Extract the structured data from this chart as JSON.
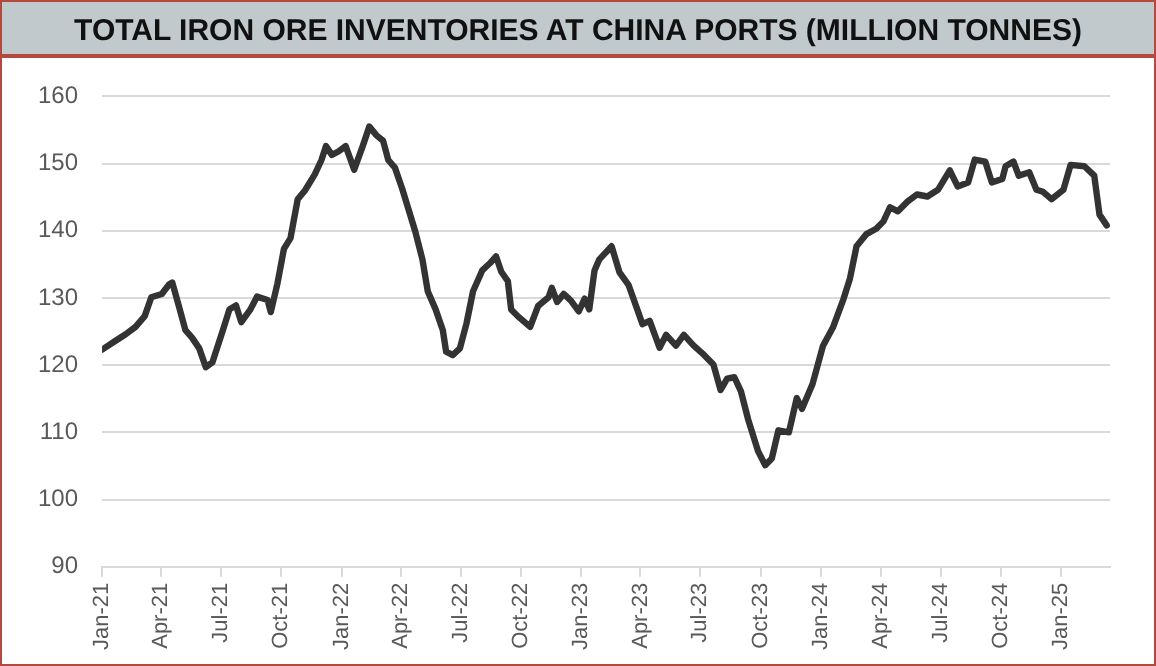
{
  "chart_data": {
    "type": "line",
    "title": "TOTAL IRON ORE INVENTORIES AT CHINA PORTS (MILLION TONNES)",
    "x": [
      "2021-01-01",
      "2021-01-21",
      "2021-02-06",
      "2021-02-21",
      "2021-03-07",
      "2021-03-17",
      "2021-04-02",
      "2021-04-13",
      "2021-04-18",
      "2021-04-28",
      "2021-05-08",
      "2021-05-18",
      "2021-05-29",
      "2021-06-08",
      "2021-06-18",
      "2021-07-04",
      "2021-07-14",
      "2021-07-24",
      "2021-08-01",
      "2021-08-15",
      "2021-08-25",
      "2021-09-10",
      "2021-09-15",
      "2021-09-25",
      "2021-10-05",
      "2021-10-15",
      "2021-10-26",
      "2021-11-06",
      "2021-11-21",
      "2021-12-01",
      "2021-12-08",
      "2021-12-17",
      "2021-12-27",
      "2022-01-07",
      "2022-01-20",
      "2022-02-02",
      "2022-02-12",
      "2022-02-23",
      "2022-03-05",
      "2022-03-13",
      "2022-03-23",
      "2022-04-03",
      "2022-04-13",
      "2022-04-23",
      "2022-05-04",
      "2022-05-12",
      "2022-05-24",
      "2022-06-04",
      "2022-06-09",
      "2022-06-19",
      "2022-06-30",
      "2022-07-10",
      "2022-07-20",
      "2022-08-03",
      "2022-08-15",
      "2022-08-24",
      "2022-09-01",
      "2022-09-11",
      "2022-09-16",
      "2022-09-26",
      "2022-10-15",
      "2022-10-27",
      "2022-11-12",
      "2022-11-17",
      "2022-11-25",
      "2022-12-05",
      "2022-12-16",
      "2022-12-28",
      "2023-01-06",
      "2023-01-13",
      "2023-01-21",
      "2023-01-28",
      "2023-02-16",
      "2023-02-28",
      "2023-03-14",
      "2023-04-04",
      "2023-04-15",
      "2023-04-30",
      "2023-05-10",
      "2023-05-25",
      "2023-06-06",
      "2023-06-21",
      "2023-07-06",
      "2023-07-21",
      "2023-08-01",
      "2023-08-11",
      "2023-08-22",
      "2023-09-01",
      "2023-09-12",
      "2023-09-27",
      "2023-10-08",
      "2023-10-18",
      "2023-10-28",
      "2023-11-13",
      "2023-11-25",
      "2023-12-03",
      "2023-12-19",
      "2024-01-04",
      "2024-01-19",
      "2024-02-04",
      "2024-02-14",
      "2024-02-24",
      "2024-03-10",
      "2024-03-25",
      "2024-04-05",
      "2024-04-15",
      "2024-04-27",
      "2024-05-11",
      "2024-05-26",
      "2024-06-11",
      "2024-06-27",
      "2024-07-15",
      "2024-07-27",
      "2024-08-12",
      "2024-08-22",
      "2024-09-07",
      "2024-09-17",
      "2024-10-03",
      "2024-10-08",
      "2024-10-20",
      "2024-10-28",
      "2024-11-13",
      "2024-11-24",
      "2024-12-04",
      "2024-12-17",
      "2025-01-04",
      "2025-01-15",
      "2025-02-05",
      "2025-02-20",
      "2025-02-28",
      "2025-03-11"
    ],
    "series": [
      {
        "color": "#333333",
        "values": [
          122.3,
          123.6,
          124.6,
          125.7,
          127.3,
          130.1,
          130.6,
          132.0,
          132.3,
          128.8,
          125.2,
          124.1,
          122.5,
          119.7,
          120.4,
          125.2,
          128.3,
          128.9,
          126.4,
          128.3,
          130.2,
          129.7,
          127.9,
          132.1,
          137.3,
          138.9,
          144.7,
          146.0,
          148.4,
          150.5,
          152.6,
          151.3,
          151.8,
          152.6,
          149.1,
          152.6,
          155.5,
          154.2,
          153.4,
          150.5,
          149.4,
          146.3,
          143.1,
          139.9,
          135.7,
          131.0,
          128.3,
          125.2,
          122.0,
          121.5,
          122.5,
          126.2,
          131.0,
          134.1,
          135.2,
          136.2,
          133.9,
          132.5,
          128.3,
          127.3,
          125.7,
          128.8,
          130.1,
          131.5,
          129.4,
          130.6,
          129.6,
          128.0,
          129.9,
          128.3,
          134.1,
          135.7,
          137.7,
          133.8,
          131.9,
          126.1,
          126.6,
          122.6,
          124.5,
          122.9,
          124.5,
          122.9,
          121.6,
          120.1,
          116.3,
          118.0,
          118.2,
          116.1,
          111.9,
          107.2,
          105.1,
          106.1,
          110.3,
          110.0,
          115.1,
          113.5,
          117.2,
          122.9,
          125.6,
          129.8,
          132.9,
          137.7,
          139.5,
          140.3,
          141.4,
          143.5,
          142.9,
          144.3,
          145.4,
          145.1,
          146.1,
          149.0,
          146.6,
          147.2,
          150.6,
          150.3,
          147.2,
          147.7,
          149.6,
          150.3,
          148.2,
          148.7,
          146.1,
          145.8,
          144.7,
          146.1,
          149.8,
          149.6,
          148.2,
          142.4,
          140.8
        ]
      }
    ],
    "xlim": [
      "2021-01-01",
      "2025-03-16"
    ],
    "xticks": [
      {
        "value": "2021-01-01",
        "label": "Jan-21"
      },
      {
        "value": "2021-04-01",
        "label": "Apr-21"
      },
      {
        "value": "2021-07-01",
        "label": "Jul-21"
      },
      {
        "value": "2021-10-01",
        "label": "Oct-21"
      },
      {
        "value": "2022-01-01",
        "label": "Jan-22"
      },
      {
        "value": "2022-04-01",
        "label": "Apr-22"
      },
      {
        "value": "2022-07-01",
        "label": "Jul-22"
      },
      {
        "value": "2022-10-01",
        "label": "Oct-22"
      },
      {
        "value": "2023-01-01",
        "label": "Jan-23"
      },
      {
        "value": "2023-04-01",
        "label": "Apr-23"
      },
      {
        "value": "2023-07-01",
        "label": "Jul-23"
      },
      {
        "value": "2023-10-01",
        "label": "Oct-23"
      },
      {
        "value": "2024-01-01",
        "label": "Jan-24"
      },
      {
        "value": "2024-04-01",
        "label": "Apr-24"
      },
      {
        "value": "2024-07-01",
        "label": "Jul-24"
      },
      {
        "value": "2024-10-01",
        "label": "Oct-24"
      },
      {
        "value": "2025-01-01",
        "label": "Jan-25"
      }
    ],
    "ylim": [
      90,
      160
    ],
    "yticks": [
      90,
      100,
      110,
      120,
      130,
      140,
      150,
      160
    ],
    "grid": "y",
    "legend": false,
    "marker": "none",
    "line_style": "solid"
  }
}
